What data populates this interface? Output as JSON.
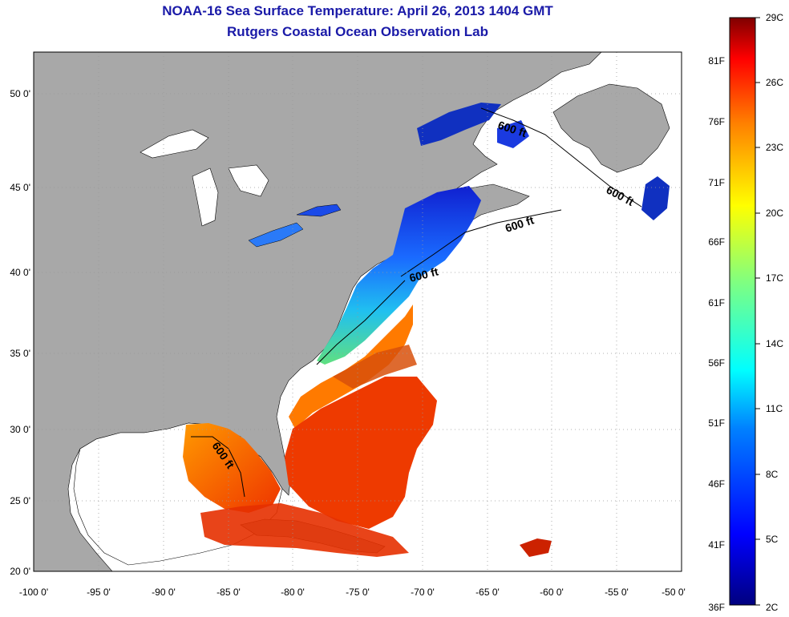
{
  "title": "NOAA-16 Sea Surface Temperature:  April 26, 2013 1404 GMT",
  "subtitle": "Rutgers Coastal Ocean Observation Lab",
  "map": {
    "lon_ticks": [
      "-100 0'",
      "-95 0'",
      "-90 0'",
      "-85 0'",
      "-80 0'",
      "-75 0'",
      "-70 0'",
      "-65 0'",
      "-60 0'",
      "-55 0'",
      "-50 0'"
    ],
    "lat_ticks": [
      "20 0'",
      "25 0'",
      "30 0'",
      "35 0'",
      "40 0'",
      "45 0'",
      "50 0'"
    ],
    "contour_label": "600 ft",
    "colors": {
      "land": "#a8a8a8",
      "ocean_no_data": "#ffffff",
      "frame": "#000000"
    }
  },
  "colorbar": {
    "celsius_labels": [
      "29C",
      "26C",
      "23C",
      "20C",
      "17C",
      "14C",
      "11C",
      "8C",
      "5C",
      "2C"
    ],
    "fahrenheit_labels": [
      "81F",
      "76F",
      "71F",
      "66F",
      "61F",
      "56F",
      "51F",
      "46F",
      "41F",
      "36F"
    ]
  }
}
